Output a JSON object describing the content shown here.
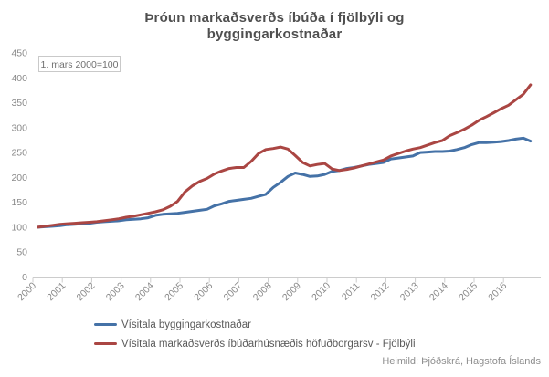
{
  "header": {
    "title_line1": "Þróun markaðsverðs íbúða í fjölbýli og",
    "title_line2": "byggingarkostnaðar"
  },
  "annotation": {
    "label": "1. mars 2000=100"
  },
  "footer": {
    "source": "Heimild: Þjóðskrá, Hagstofa Íslands"
  },
  "chart_data": {
    "type": "line",
    "title": "Þróun markaðsverðs íbúða í fjölbýli og byggingarkostnaðar",
    "base_note": "1. mars 2000=100",
    "grid": false,
    "legend_position": "bottom-left",
    "ylim": [
      0,
      450
    ],
    "y_ticks": [
      0,
      50,
      100,
      150,
      200,
      250,
      300,
      350,
      400,
      450
    ],
    "x_tick_years": [
      2000,
      2001,
      2002,
      2003,
      2004,
      2005,
      2006,
      2007,
      2008,
      2009,
      2010,
      2011,
      2012,
      2013,
      2014,
      2015,
      2016
    ],
    "x_start_year": 2000.17,
    "x_step_years": 0.25,
    "series": [
      {
        "name": "Vísitala byggingarkostnaðar",
        "color": "#4572A7",
        "values": [
          100,
          101,
          102,
          103,
          105,
          106,
          107,
          108,
          110,
          111,
          112,
          113,
          115,
          116,
          117,
          119,
          124,
          126,
          127,
          128,
          130,
          132,
          134,
          136,
          143,
          147,
          152,
          154,
          156,
          158,
          162,
          166,
          180,
          190,
          202,
          209,
          206,
          202,
          203,
          206,
          212,
          214,
          218,
          220,
          223,
          226,
          228,
          230,
          237,
          239,
          241,
          243,
          250,
          251,
          252,
          252,
          253,
          256,
          260,
          266,
          270,
          270,
          271,
          272,
          274,
          277,
          279,
          273
        ]
      },
      {
        "name": "Vísitala markaðsverðs íbúðarhúsnæðis höfuðborgarsv - Fjölbýli",
        "color": "#AA4643",
        "values": [
          100,
          102,
          104,
          106,
          107,
          108,
          109,
          110,
          111,
          113,
          115,
          117,
          120,
          122,
          125,
          128,
          131,
          135,
          142,
          152,
          171,
          183,
          192,
          198,
          207,
          213,
          218,
          220,
          220,
          232,
          248,
          256,
          258,
          261,
          257,
          244,
          230,
          223,
          226,
          228,
          217,
          214,
          216,
          219,
          223,
          227,
          231,
          235,
          243,
          248,
          253,
          257,
          260,
          265,
          270,
          274,
          284,
          290,
          297,
          305,
          315,
          322,
          330,
          338,
          345,
          356,
          367,
          386
        ]
      }
    ],
    "source": "Heimild: Þjóðskrá, Hagstofa Íslands"
  }
}
